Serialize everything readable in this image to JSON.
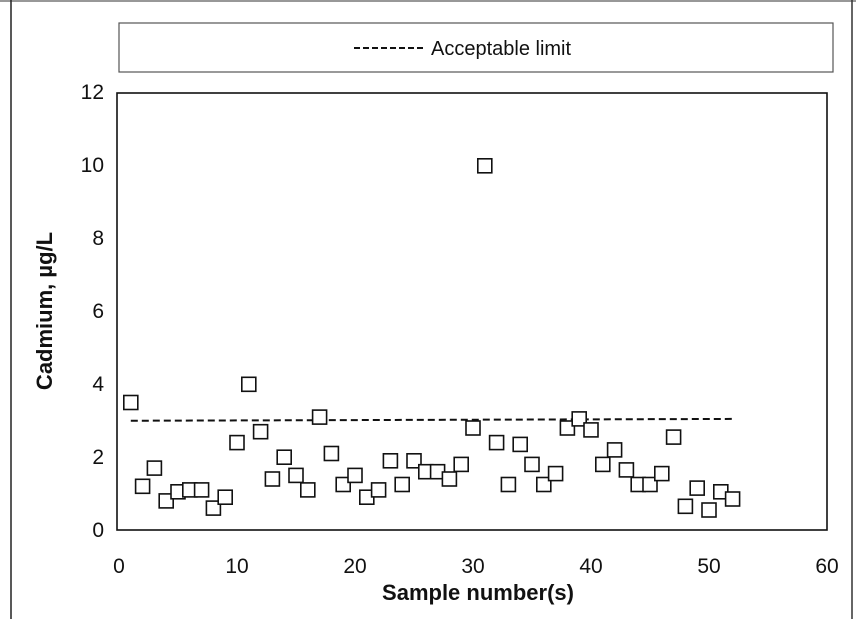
{
  "chart_data": {
    "type": "scatter",
    "xlabel": "Sample number(s)",
    "ylabel": "Cadmium, µg/L",
    "xlim": [
      0,
      60
    ],
    "ylim": [
      0,
      12
    ],
    "x_ticks": [
      "0",
      "10",
      "20",
      "30",
      "40",
      "50",
      "60"
    ],
    "y_ticks": [
      "0",
      "2",
      "4",
      "6",
      "8",
      "10",
      "12"
    ],
    "grid": false,
    "legend": {
      "placement": "top",
      "entries": [
        "Acceptable limit"
      ]
    },
    "series": [
      {
        "marker": "open-square",
        "color": "#111111",
        "x": [
          1,
          2,
          3,
          4,
          5,
          6,
          7,
          8,
          9,
          10,
          11,
          12,
          13,
          14,
          15,
          16,
          17,
          18,
          19,
          20,
          21,
          22,
          23,
          24,
          25,
          26,
          27,
          28,
          29,
          30,
          31,
          32,
          33,
          34,
          35,
          36,
          37,
          38,
          39,
          40,
          41,
          42,
          43,
          44,
          45,
          46,
          47,
          48,
          49,
          50,
          51,
          52
        ],
        "y": [
          3.5,
          1.2,
          1.7,
          0.8,
          1.05,
          1.1,
          1.1,
          0.6,
          0.9,
          2.4,
          4.0,
          2.7,
          1.4,
          2.0,
          1.5,
          1.1,
          3.1,
          2.1,
          1.25,
          1.5,
          0.9,
          1.1,
          1.9,
          1.25,
          1.9,
          1.6,
          1.6,
          1.4,
          1.8,
          2.8,
          10.0,
          2.4,
          1.25,
          2.35,
          1.8,
          1.25,
          1.55,
          2.8,
          3.05,
          2.75,
          1.8,
          2.2,
          1.65,
          1.25,
          1.25,
          1.55,
          2.55,
          0.65,
          1.15,
          0.55,
          1.05,
          0.85
        ]
      },
      {
        "name": "Acceptable limit",
        "style": "dashed-line",
        "color": "#111111",
        "x": [
          1,
          52
        ],
        "y": [
          3.0,
          3.05
        ]
      }
    ]
  }
}
